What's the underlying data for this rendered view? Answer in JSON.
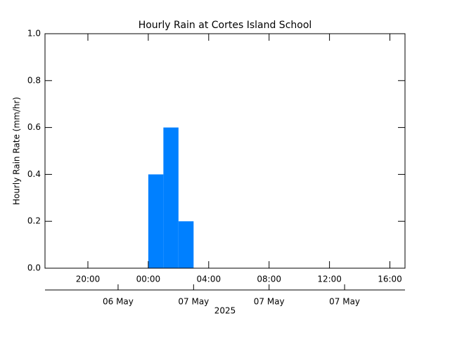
{
  "chart_data": {
    "type": "histogram",
    "title": "Hourly Rain at Cortes Island School",
    "y_label": "Hourly Rain Rate (mm/hr)",
    "x2_label": "2025",
    "bins": [
      24,
      25,
      26,
      27
    ],
    "values": [
      0.4,
      0.6,
      0.2
    ],
    "color": "#0080ff",
    "xlim": [
      17.16,
      41.0
    ],
    "xticks": [
      {
        "value": 20,
        "label": "20:00"
      },
      {
        "value": 24,
        "label": "00:00"
      },
      {
        "value": 28,
        "label": "04:00"
      },
      {
        "value": 32,
        "label": "08:00"
      },
      {
        "value": 36,
        "label": "12:00"
      },
      {
        "value": 40,
        "label": "16:00"
      }
    ],
    "x2ticks": [
      {
        "value": 22,
        "label": "06 May"
      },
      {
        "value": 27,
        "label": "07 May"
      },
      {
        "value": 32,
        "label": "07 May"
      },
      {
        "value": 37,
        "label": "07 May"
      }
    ],
    "ylim": [
      0,
      1
    ],
    "yticks": [
      {
        "value": 0,
        "label": "0.0"
      },
      {
        "value": 0.2,
        "label": "0.2"
      },
      {
        "value": 0.4,
        "label": "0.4"
      },
      {
        "value": 0.6,
        "label": "0.6"
      },
      {
        "value": 0.8,
        "label": "0.8"
      },
      {
        "value": 1,
        "label": "1.0"
      }
    ]
  }
}
